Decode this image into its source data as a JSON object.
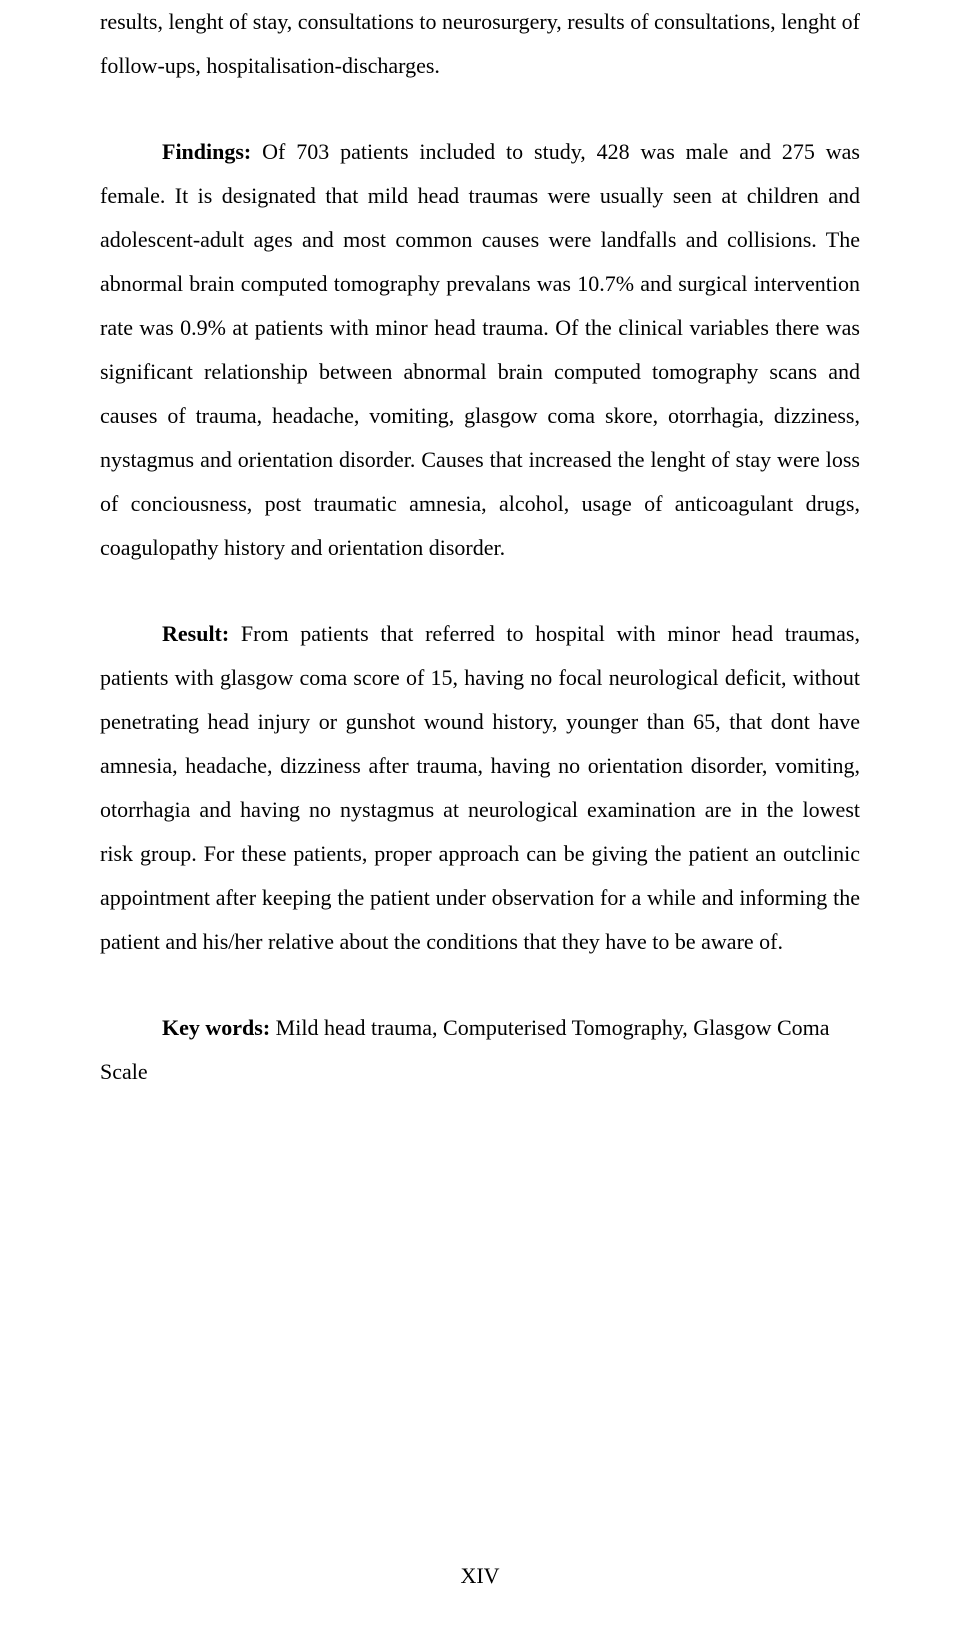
{
  "para1": "results, lenght of stay, consultations to neurosurgery, results of consultations, lenght of follow-ups, hospitalisation-discharges.",
  "para2_bold": "Findings:",
  "para2_text": " Of 703 patients included to study, 428 was male and 275 was female. It is designated that mild head traumas were usually seen at children and adolescent-adult ages and most common causes were landfalls and collisions. The abnormal brain computed tomography prevalans was 10.7% and surgical intervention rate was 0.9% at patients with minor head trauma. Of the clinical variables there was significant relationship between abnormal brain computed tomography scans and causes of trauma, headache, vomiting, glasgow coma skore, otorrhagia, dizziness, nystagmus and orientation disorder. Causes that increased the lenght of stay were loss of conciousness, post traumatic amnesia, alcohol, usage of anticoagulant drugs, coagulopathy history and orientation disorder.",
  "para3_bold": "Result:",
  "para3_text": " From patients that referred to hospital with minor head traumas, patients with glasgow coma score of 15, having no focal neurological deficit, without penetrating head injury or gunshot wound history, younger than 65, that dont have amnesia, headache, dizziness after trauma, having no orientation disorder, vomiting, otorrhagia and having no nystagmus at neurological examination are in the lowest risk group. For these patients, proper approach can be giving the patient an outclinic appointment after keeping the patient under observation for a while and informing the patient and his/her relative about the conditions that they have to be aware of.",
  "keywords_bold": "Key words:",
  "keywords_text": " Mild head trauma, Computerised Tomography, Glasgow Coma",
  "scale_text": "Scale",
  "page_number": "XIV"
}
